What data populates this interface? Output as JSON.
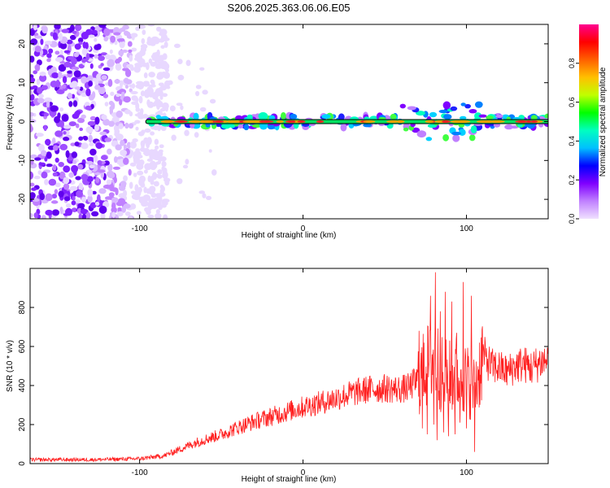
{
  "title": "S206.2025.363.06.06.E05",
  "chart_data": [
    {
      "type": "heatmap",
      "xlabel": "Height of straight line (km)",
      "ylabel": "Frequency (Hz)",
      "xlim": [
        -167,
        150
      ],
      "ylim": [
        -25,
        25
      ],
      "xticks": [
        -100,
        0,
        100
      ],
      "xtick_labels": [
        "-100",
        "0",
        "100"
      ],
      "yticks": [
        -20,
        -10,
        0,
        10,
        20
      ],
      "ytick_labels": [
        "-20",
        "-10",
        "0",
        "10",
        "20"
      ],
      "noise_region_km": [
        -167,
        -95
      ],
      "signal_line": {
        "freq_hz": 0,
        "x_start_km": -95,
        "x_end_km": 150
      },
      "colorbar": {
        "label": "Normalized spectral amplitude",
        "range": [
          0,
          1
        ],
        "ticks": [
          0.0,
          0.2,
          0.4,
          0.6,
          0.8
        ],
        "tick_labels": [
          "0.0",
          "0.2",
          "0.4",
          "0.6",
          "0.8"
        ],
        "colors": [
          "#f0e0ff",
          "#c080ff",
          "#8000ff",
          "#0000ff",
          "#00c0ff",
          "#00ffc0",
          "#00ff00",
          "#c0ff00",
          "#ffc000",
          "#ff6000",
          "#ff0000",
          "#ff0090"
        ]
      }
    },
    {
      "type": "line",
      "xlabel": "Height of straight line (km)",
      "ylabel": "SNR (10 * v/v)",
      "xlim": [
        -167,
        150
      ],
      "ylim": [
        0,
        1000
      ],
      "xticks": [
        -100,
        0,
        100
      ],
      "xtick_labels": [
        "-100",
        "0",
        "100"
      ],
      "yticks": [
        0,
        200,
        400,
        600,
        800
      ],
      "ytick_labels": [
        "0",
        "200",
        "400",
        "600",
        "800"
      ],
      "color": "#ff2020",
      "trend": {
        "x": [
          -167,
          -130,
          -100,
          -85,
          -75,
          -65,
          -50,
          -40,
          -30,
          -20,
          -10,
          0,
          10,
          20,
          30,
          40,
          50,
          60,
          65,
          70,
          75,
          80,
          85,
          90,
          95,
          100,
          105,
          110,
          115,
          120,
          125,
          130,
          135,
          140,
          145,
          150
        ],
        "y": [
          20,
          20,
          25,
          40,
          75,
          110,
          150,
          185,
          215,
          240,
          265,
          290,
          310,
          335,
          360,
          380,
          385,
          380,
          390,
          430,
          480,
          560,
          450,
          440,
          460,
          430,
          380,
          560,
          500,
          490,
          470,
          500,
          510,
          490,
          520,
          530
        ]
      },
      "spikes": [
        {
          "x": 71,
          "y": 680
        },
        {
          "x": 73,
          "y": 180
        },
        {
          "x": 74,
          "y": 620
        },
        {
          "x": 76,
          "y": 150
        },
        {
          "x": 78,
          "y": 860
        },
        {
          "x": 80,
          "y": 200
        },
        {
          "x": 81,
          "y": 980
        },
        {
          "x": 82,
          "y": 120
        },
        {
          "x": 84,
          "y": 780
        },
        {
          "x": 86,
          "y": 160
        },
        {
          "x": 87,
          "y": 880
        },
        {
          "x": 89,
          "y": 140
        },
        {
          "x": 91,
          "y": 830
        },
        {
          "x": 93,
          "y": 150
        },
        {
          "x": 94,
          "y": 670
        },
        {
          "x": 96,
          "y": 210
        },
        {
          "x": 98,
          "y": 930
        },
        {
          "x": 100,
          "y": 180
        },
        {
          "x": 103,
          "y": 860
        },
        {
          "x": 105,
          "y": 60
        },
        {
          "x": 108,
          "y": 620
        }
      ]
    }
  ]
}
